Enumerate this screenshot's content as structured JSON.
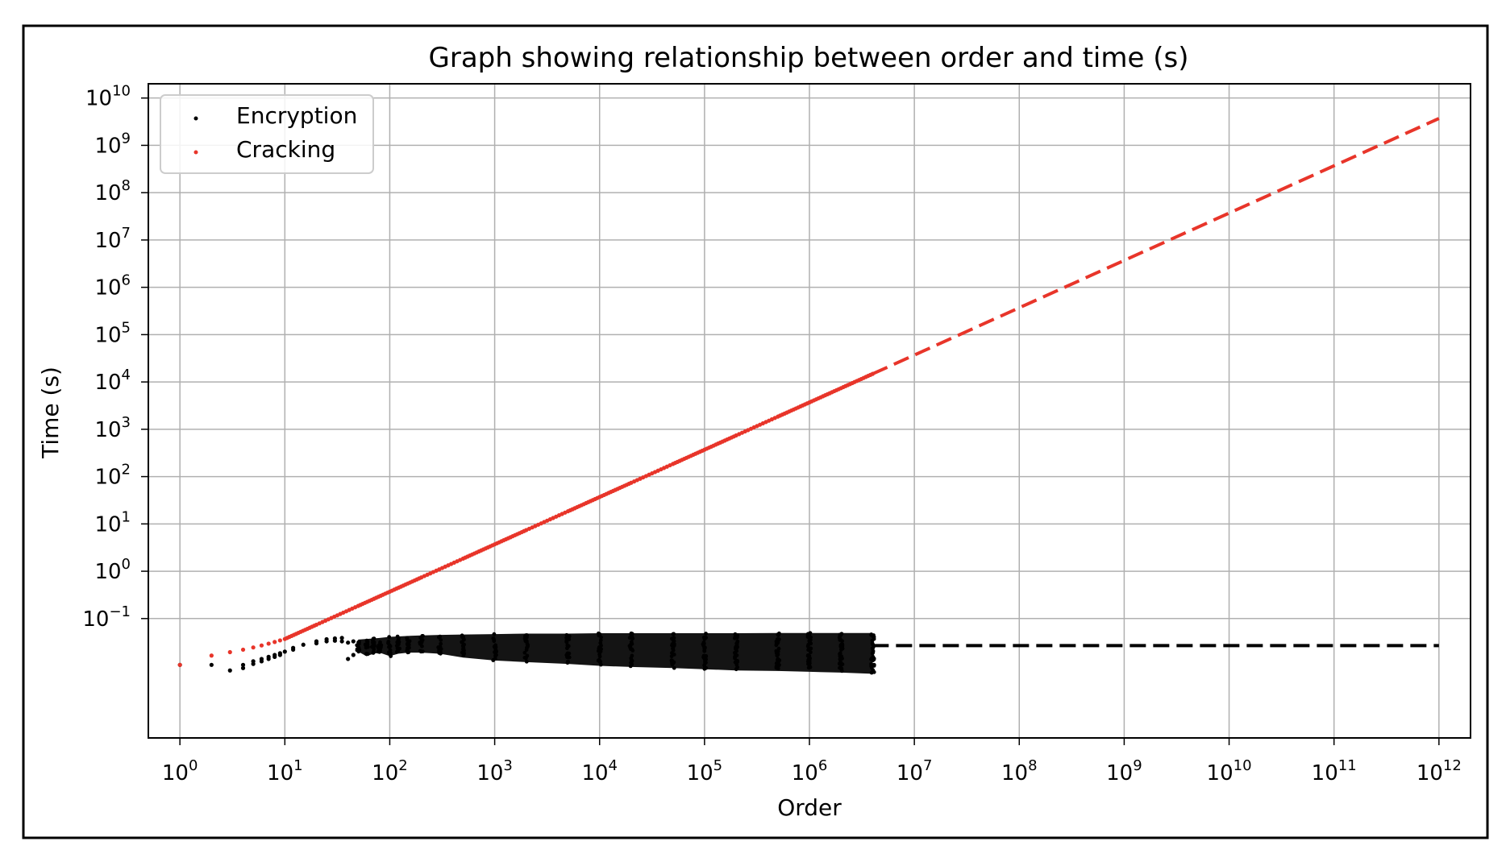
{
  "chart_data": {
    "type": "scatter",
    "title": "Graph showing relationship between order and time (s)",
    "xlabel": "Order",
    "ylabel": "Time (s)",
    "xscale": "log",
    "yscale": "log",
    "xlim": [
      0.5,
      2000000000000
    ],
    "ylim": [
      0.0003,
      20000000000
    ],
    "x_ticks": [
      {
        "base": "10",
        "exp": "0"
      },
      {
        "base": "10",
        "exp": "1"
      },
      {
        "base": "10",
        "exp": "2"
      },
      {
        "base": "10",
        "exp": "3"
      },
      {
        "base": "10",
        "exp": "4"
      },
      {
        "base": "10",
        "exp": "5"
      },
      {
        "base": "10",
        "exp": "6"
      },
      {
        "base": "10",
        "exp": "7"
      },
      {
        "base": "10",
        "exp": "8"
      },
      {
        "base": "10",
        "exp": "9"
      },
      {
        "base": "10",
        "exp": "10"
      },
      {
        "base": "10",
        "exp": "11"
      },
      {
        "base": "10",
        "exp": "12"
      }
    ],
    "y_ticks": [
      {
        "base": "10",
        "exp": "−1"
      },
      {
        "base": "10",
        "exp": "0"
      },
      {
        "base": "10",
        "exp": "1"
      },
      {
        "base": "10",
        "exp": "2"
      },
      {
        "base": "10",
        "exp": "3"
      },
      {
        "base": "10",
        "exp": "4"
      },
      {
        "base": "10",
        "exp": "5"
      },
      {
        "base": "10",
        "exp": "6"
      },
      {
        "base": "10",
        "exp": "7"
      },
      {
        "base": "10",
        "exp": "8"
      },
      {
        "base": "10",
        "exp": "9"
      },
      {
        "base": "10",
        "exp": "10"
      }
    ],
    "grid": true,
    "legend_position": "top-left",
    "series": [
      {
        "name": "Encryption",
        "color": "#000000",
        "marker": "point",
        "x": [
          1,
          2,
          3,
          4,
          5,
          6,
          7,
          8,
          9,
          10,
          12,
          15,
          20,
          25,
          30,
          35,
          40,
          45,
          50,
          60,
          70,
          80,
          100,
          120,
          150,
          200,
          300,
          500,
          1000,
          2000,
          5000,
          10000,
          20000,
          50000,
          100000,
          200000,
          500000,
          1000000,
          2000000,
          4000000
        ],
        "y_upper": [
          0.0105,
          0.0105,
          0.008,
          0.0105,
          0.0125,
          0.014,
          0.0155,
          0.017,
          0.0185,
          0.02,
          0.024,
          0.028,
          0.033,
          0.0365,
          0.038,
          0.039,
          0.031,
          0.033,
          0.036,
          0.037,
          0.038,
          0.039,
          0.041,
          0.042,
          0.043,
          0.044,
          0.045,
          0.046,
          0.047,
          0.048,
          0.048,
          0.049,
          0.049,
          0.049,
          0.049,
          0.049,
          0.0495,
          0.0495,
          0.0495,
          0.0495
        ],
        "y_lower": [
          0.0105,
          0.0105,
          0.008,
          0.009,
          0.011,
          0.0125,
          0.014,
          0.0155,
          0.017,
          0.0185,
          0.022,
          0.026,
          0.03,
          0.033,
          0.034,
          0.033,
          0.014,
          0.017,
          0.02,
          0.016,
          0.018,
          0.019,
          0.016,
          0.018,
          0.019,
          0.019,
          0.018,
          0.015,
          0.013,
          0.012,
          0.011,
          0.01,
          0.0095,
          0.009,
          0.0085,
          0.008,
          0.0078,
          0.0075,
          0.0072,
          0.0068
        ],
        "trend": {
          "style": "dashed",
          "x": [
            4000000,
            1000000000000
          ],
          "y": [
            0.0268,
            0.0268
          ]
        }
      },
      {
        "name": "Cracking",
        "color": "#e8352a",
        "marker": "point",
        "x": [
          1,
          2,
          3,
          4,
          5,
          6,
          7,
          8,
          9,
          10,
          20,
          50,
          100,
          200,
          500,
          1000,
          2000,
          5000,
          10000,
          20000,
          50000,
          100000,
          200000,
          500000,
          1000000,
          2000000,
          4000000
        ],
        "y": [
          0.0105,
          0.0165,
          0.0195,
          0.022,
          0.0245,
          0.027,
          0.0295,
          0.032,
          0.0345,
          0.037,
          0.074,
          0.185,
          0.37,
          0.74,
          1.85,
          3.7,
          7.4,
          18.5,
          37,
          74,
          185,
          370,
          740,
          1850,
          3700,
          7400,
          14800
        ],
        "trend": {
          "style": "dashed",
          "x": [
            4000000,
            1000000000000
          ],
          "y": [
            14800,
            3700000000
          ]
        }
      }
    ]
  }
}
